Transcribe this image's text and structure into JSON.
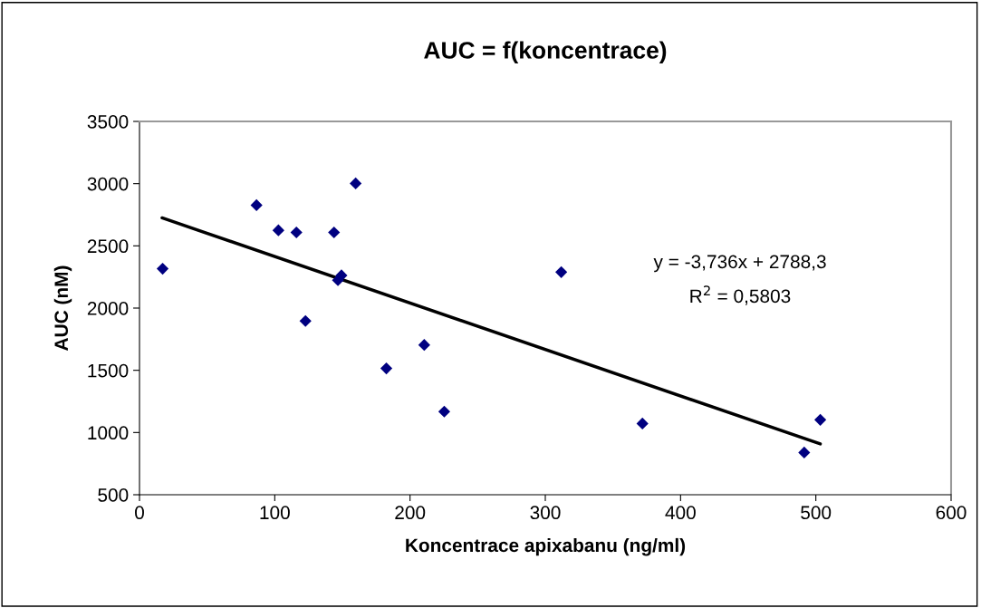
{
  "chart_data": {
    "type": "scatter",
    "title": "AUC = f(koncentrace)",
    "xlabel": "Koncentrace apixabanu (ng/ml)",
    "ylabel": "AUC (nM)",
    "xlim": [
      0,
      600
    ],
    "xticks": [
      0,
      100,
      200,
      300,
      400,
      500,
      600
    ],
    "ylim": [
      500,
      3500
    ],
    "yticks": [
      500,
      1000,
      1500,
      2000,
      2500,
      3000,
      3500
    ],
    "grid": false,
    "legend": false,
    "marker": "diamond",
    "series": [
      {
        "color": "#000080",
        "x": [
          17.1,
          86.5,
          102.7,
          116,
          143.8,
          159.8,
          149.3,
          146.7,
          122.7,
          182.5,
          210.5,
          225.3,
          311.8,
          371.8,
          491.4,
          503.3
        ],
        "values": [
          2316,
          2827,
          2625,
          2608,
          2608,
          3002,
          2263,
          2224,
          1896,
          1515,
          1704,
          1168,
          2289,
          1072,
          839,
          1102
        ]
      },
      {
        "type": "line",
        "color": "#000000",
        "line_style": "solid",
        "marker": "none",
        "x": [
          16.7,
          503.3
        ],
        "values": [
          2725,
          908
        ]
      }
    ],
    "annotations": [
      "y = -3,736x + 2788,3",
      "R$^{2}$ = 0,5803"
    ]
  }
}
